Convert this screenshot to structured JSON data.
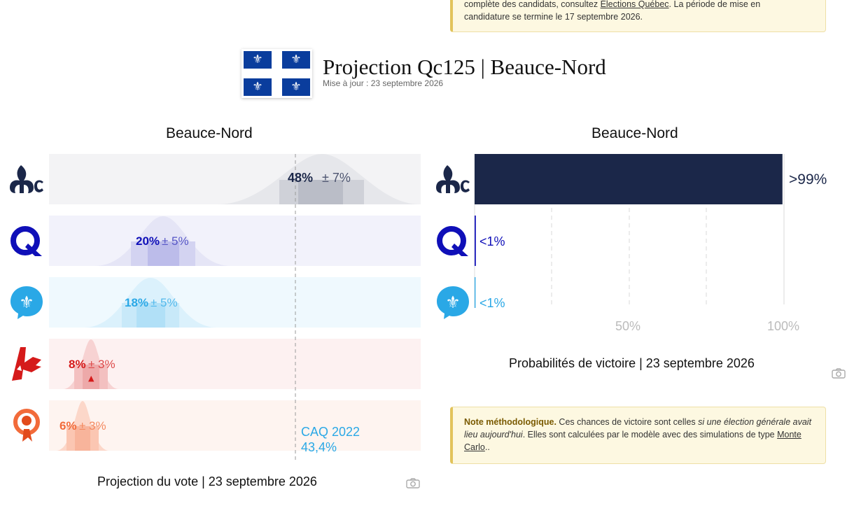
{
  "top_note": {
    "line1_pre": "complète des candidats, consultez ",
    "line1_link": "Élections Québec",
    "line1_post": ". La période de mise en",
    "line2": "candidature se termine le 17 septembre 2026."
  },
  "header": {
    "title": "Projection Qc125 | Beauce-Nord",
    "updated": "Mise à jour : 23 septembre 2026",
    "flag_glyph": "⚜"
  },
  "colors": {
    "caq": "#1b2749",
    "pcq": "#0f0fb8",
    "pq": "#2aa8e6",
    "plq": "#d51a1a",
    "qs": "#f26b3a"
  },
  "vote_chart": {
    "title": "Beauce-Nord",
    "caption": "Projection du vote | 23 septembre 2026",
    "ref_line_label1": "CAQ 2022",
    "ref_line_label2": "43,4%",
    "parties": [
      {
        "key": "caq",
        "icon": "caq-logo-icon",
        "pct": "48%",
        "moe": "± 7%"
      },
      {
        "key": "pcq",
        "icon": "pcq-logo-icon",
        "pct": "20%",
        "moe": "± 5%"
      },
      {
        "key": "pq",
        "icon": "pq-logo-icon",
        "pct": "18%",
        "moe": "± 5%"
      },
      {
        "key": "plq",
        "icon": "plq-logo-icon",
        "pct": "8%",
        "moe": "± 3%",
        "trend": "▲"
      },
      {
        "key": "qs",
        "icon": "qs-logo-icon",
        "pct": "6%",
        "moe": "± 3%"
      }
    ]
  },
  "win_chart": {
    "title": "Beauce-Nord",
    "caption": "Probabilités de victoire | 23 septembre 2026",
    "axis_labels": [
      "50%",
      "100%"
    ],
    "parties": [
      {
        "key": "caq",
        "label": ">99%",
        "prob": 0.995
      },
      {
        "key": "pcq",
        "label": "<1%",
        "prob": 0.004
      },
      {
        "key": "pq",
        "label": "<1%",
        "prob": 0.003
      }
    ]
  },
  "method_note": {
    "bold": "Note méthodologique.",
    "text1": " Ces chances de victoire sont celles ",
    "ital1": "si une élection générale",
    "ital2": "avait lieu aujourd'hui",
    "text2": ". Elles sont calculées par le modèle avec des simulations de type",
    "link": "Monte Carlo",
    "text3": ".."
  },
  "chart_data": [
    {
      "type": "bar",
      "title": "Beauce-Nord",
      "caption": "Projection du vote | 23 septembre 2026",
      "categories": [
        "CAQ",
        "PCQ",
        "PQ",
        "PLQ",
        "QS"
      ],
      "values": [
        48,
        20,
        18,
        8,
        6
      ],
      "errors": [
        7,
        5,
        5,
        3,
        3
      ],
      "reference": {
        "label": "CAQ 2022",
        "value": 43.4
      },
      "xlim": [
        0,
        100
      ]
    },
    {
      "type": "bar",
      "title": "Beauce-Nord",
      "caption": "Probabilités de victoire | 23 septembre 2026",
      "categories": [
        "CAQ",
        "PCQ",
        "PQ"
      ],
      "values": [
        99.5,
        0.4,
        0.3
      ],
      "labels": [
        ">99%",
        "<1%",
        "<1%"
      ],
      "xlim": [
        0,
        100
      ],
      "grid": true
    }
  ]
}
